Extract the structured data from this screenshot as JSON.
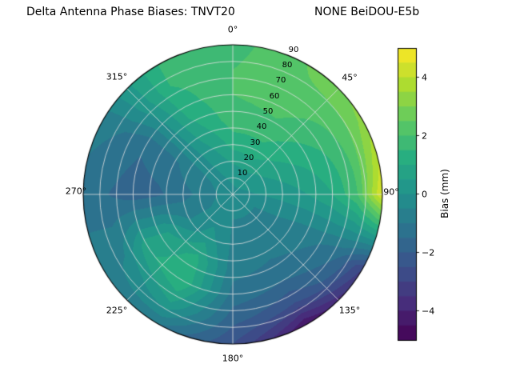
{
  "figure": {
    "background": "#ffffff"
  },
  "chart_data": {
    "type": "heatmap",
    "projection": "polar",
    "title": {
      "left": "Delta Antenna Phase Biases: TNVT20",
      "right": "NONE BeiDOU-E5b"
    },
    "theta_zero_location": "top",
    "theta_direction": "clockwise",
    "theta_tick_labels": [
      "0°",
      "45°",
      "90°",
      "135°",
      "180°",
      "225°",
      "270°",
      "315°"
    ],
    "r_tick_labels": [
      "10",
      "20",
      "30",
      "40",
      "50",
      "60",
      "70",
      "80",
      "90"
    ],
    "r_max": 90,
    "r_label_angle_deg": 22.5,
    "grid": true,
    "azimuths_deg": [
      0,
      30,
      60,
      90,
      120,
      150,
      180,
      210,
      240,
      270,
      300,
      330
    ],
    "zeniths_deg": [
      0,
      15,
      30,
      45,
      60,
      75,
      90
    ],
    "bias_mm": [
      [
        -0.2,
        -0.2,
        -0.2,
        -0.2,
        -0.2,
        -0.2,
        -0.2,
        -0.2,
        -0.2,
        -0.2,
        -0.2,
        -0.2
      ],
      [
        0.3,
        0.5,
        0.3,
        0.0,
        -0.5,
        -0.5,
        -0.5,
        -0.3,
        -0.5,
        -0.7,
        -0.5,
        0.0
      ],
      [
        1.2,
        1.3,
        0.8,
        0.2,
        -0.6,
        -0.8,
        -0.6,
        0.3,
        -0.5,
        -1.2,
        -0.8,
        0.3
      ],
      [
        1.8,
        1.8,
        1.2,
        0.5,
        -0.8,
        -1.0,
        -0.8,
        1.2,
        0.5,
        -1.6,
        -1.2,
        0.8
      ],
      [
        2.0,
        2.2,
        1.6,
        1.0,
        -1.0,
        -1.5,
        -1.2,
        1.5,
        0.8,
        -1.8,
        -1.4,
        1.2
      ],
      [
        2.0,
        2.4,
        2.2,
        2.0,
        -1.5,
        -2.5,
        -1.8,
        0.5,
        -0.5,
        -1.5,
        -1.0,
        1.5
      ],
      [
        1.8,
        2.5,
        3.2,
        4.6,
        -3.0,
        -4.5,
        -2.5,
        -1.0,
        -0.8,
        -1.2,
        -0.8,
        1.5
      ]
    ],
    "levels": {
      "min": -5,
      "max": 5,
      "step": 0.5
    },
    "colormap": {
      "name": "viridis",
      "stops": [
        "#440154",
        "#472d7b",
        "#3b528b",
        "#2c728e",
        "#21918c",
        "#28ae80",
        "#5ec962",
        "#addc30",
        "#fde725"
      ]
    },
    "colorbar": {
      "label": "Bias (mm)",
      "tick_labels": [
        "4",
        "2",
        "0",
        "−2",
        "−4"
      ],
      "tick_values": [
        4,
        2,
        0,
        -2,
        -4
      ],
      "vmin": -5,
      "vmax": 5
    }
  }
}
